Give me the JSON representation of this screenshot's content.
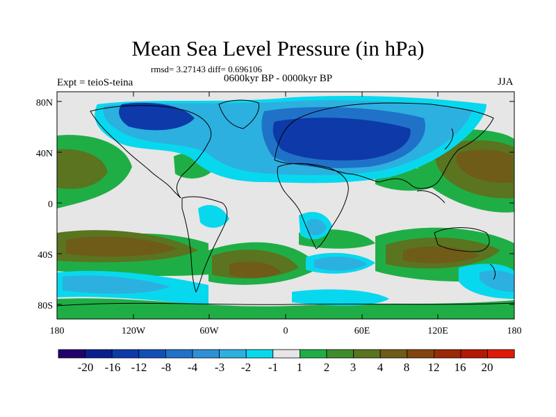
{
  "title": "Mean Sea Level Pressure (in hPa)",
  "stats": "rmsd= 3.27143 diff= 0.696106",
  "left_label": "Expt = teioS-teina",
  "center_label": "0600kyr BP - 0000kyr BP",
  "right_label": "JJA",
  "lat_ticks": [
    "80N",
    "40N",
    "0",
    "40S",
    "80S"
  ],
  "lon_ticks": [
    "180",
    "120W",
    "60W",
    "0",
    "60E",
    "120E",
    "180"
  ],
  "colorbar": {
    "labels": [
      "-20",
      "-16",
      "-12",
      "-8",
      "-4",
      "-3",
      "-2",
      "-1",
      "1",
      "2",
      "3",
      "4",
      "8",
      "12",
      "16",
      "20"
    ],
    "colors": [
      "#22006e",
      "#0a1f8e",
      "#0d3aa8",
      "#1250b8",
      "#1f72c8",
      "#2f90d6",
      "#2cb0e0",
      "#08d8ee",
      "#e6e6e6",
      "#1fae46",
      "#3f8c2c",
      "#5a7420",
      "#6e5c18",
      "#84440f",
      "#9a2a08",
      "#b41806",
      "#e01a0a"
    ]
  },
  "palette": {
    "neutral": "#e6e6e6",
    "cyan": "#08d8ee",
    "lightblue": "#2cb0e0",
    "midblue": "#1f72c8",
    "darkblue": "#0d3aa8",
    "green": "#1fae46",
    "olive": "#5a7420",
    "brown": "#6e5c18"
  }
}
